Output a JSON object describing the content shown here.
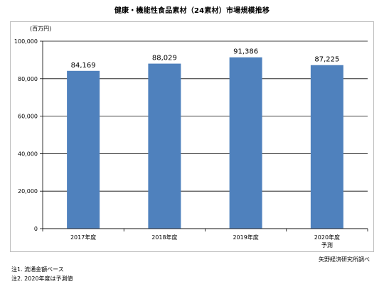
{
  "chart_data": {
    "type": "bar",
    "title": "健康・機能性食品素材（24素材）市場規模推移",
    "unit": "(百万円)",
    "categories": [
      {
        "label": "2017年度",
        "sub": ""
      },
      {
        "label": "2018年度",
        "sub": ""
      },
      {
        "label": "2019年度",
        "sub": ""
      },
      {
        "label": "2020年度",
        "sub": "予測"
      }
    ],
    "values": [
      84169,
      88029,
      91386,
      87225
    ],
    "data_labels": [
      "84,169",
      "88,029",
      "91,386",
      "87,225"
    ],
    "yticks": [
      "0",
      "20,000",
      "40,000",
      "60,000",
      "80,000",
      "100,000"
    ],
    "ylim": [
      0,
      100000
    ],
    "bar_color": "#4f81bd",
    "grid": true
  },
  "source": "矢野経済研究所調べ",
  "notes": [
    "注1. 流通金額ベース",
    "注2. 2020年度は予測値"
  ]
}
